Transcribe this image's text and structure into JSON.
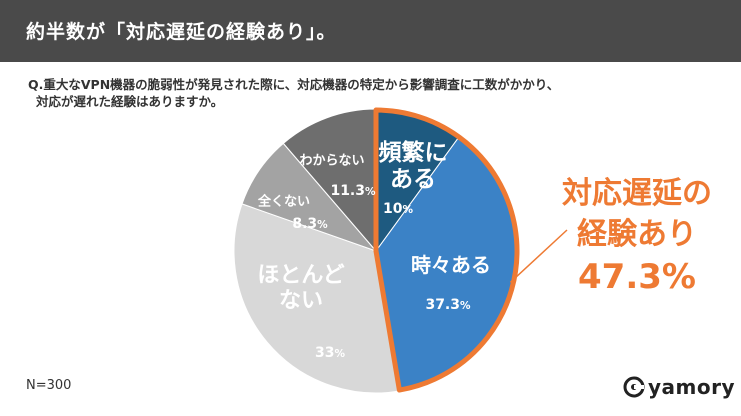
{
  "header": {
    "title": "約半数が「対応遅延の経験あり」。"
  },
  "question": {
    "line1": "Q.重大なVPN機器の脆弱性が発見された際に、対応機器の特定から影響調査に工数がかかり、",
    "line2": "対応が遅れた経験はありますか。"
  },
  "sample": "N=300",
  "logo": {
    "text": "yamory",
    "icon": "yamory-logo-icon"
  },
  "callout": {
    "line1": "対応遅延の",
    "line2": "経験あり",
    "value": "47.3%",
    "color": "#ee7a33"
  },
  "chart_data": {
    "type": "pie",
    "slices": [
      {
        "label_lines": [
          "頻繁に",
          "ある"
        ],
        "value": 10,
        "value_text": "10",
        "unit": "%",
        "color": "#1e5a80"
      },
      {
        "label_lines": [
          "時々ある"
        ],
        "value": 37.3,
        "value_text": "37.3",
        "unit": "%",
        "color": "#3b82c6"
      },
      {
        "label_lines": [
          "ほとんど",
          "ない"
        ],
        "value": 33,
        "value_text": "33",
        "unit": "%",
        "color": "#d8d8d8"
      },
      {
        "label_lines": [
          "全くない"
        ],
        "value": 8.3,
        "value_text": "8.3",
        "unit": "%",
        "color": "#a3a3a3"
      },
      {
        "label_lines": [
          "わからない"
        ],
        "value": 11.3,
        "value_text": "11.3",
        "unit": "%",
        "color": "#6e6e6e"
      }
    ],
    "highlight_color": "#ee7a33"
  }
}
